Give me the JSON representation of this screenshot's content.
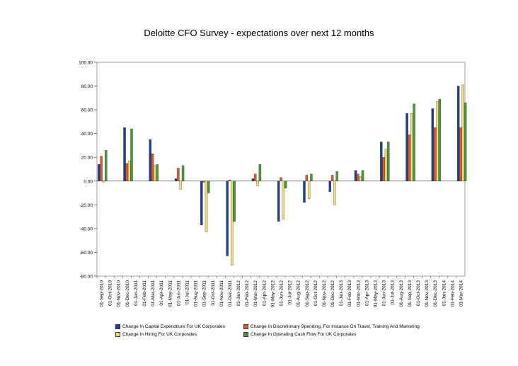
{
  "chart_data": {
    "type": "bar",
    "title": "Deloitte CFO Survey - expectations over next 12 months",
    "categories": [
      "01-Sep-2010",
      "01-Oct-2010",
      "01-Nov-2010",
      "01-Dec-2010",
      "01-Jan-2011",
      "01-Feb-2011",
      "01-Mar-2011",
      "01-Apr-2011",
      "01-May-2011",
      "01-Jun-2011",
      "01-Jul-2011",
      "01-Aug-2011",
      "01-Sep-2011",
      "01-Oct-2011",
      "01-Nov-2011",
      "01-Dec-2011",
      "01-Jan-2012",
      "01-Feb-2012",
      "01-Mar-2012",
      "01-Apr-2012",
      "01-May-2012",
      "01-Jun-2012",
      "01-Jul-2012",
      "01-Aug-2012",
      "01-Sep-2012",
      "01-Oct-2012",
      "01-Nov-2012",
      "01-Dec-2012",
      "01-Jan-2013",
      "01-Feb-2013",
      "01-Mar-2013",
      "01-Apr-2013",
      "01-May-2013",
      "01-Jun-2013",
      "01-Jul-2013",
      "01-Aug-2013",
      "01-Sep-2013",
      "01-Oct-2013",
      "01-Nov-2013",
      "01-Dec-2013",
      "01-Jan-2014",
      "01-Feb-2014",
      "01-Mar-2014"
    ],
    "ylim": [
      -80,
      100
    ],
    "yticks": [
      "100.00",
      "80.00",
      "60.00",
      "40.00",
      "20.00",
      "0.00",
      "-20.00",
      "-40.00",
      "-60.00",
      "-80.00"
    ],
    "legend_position": "bottom",
    "series": [
      {
        "name": "Change In Capital Expenditure For UK Corporates",
        "color": "#1f3f8f",
        "values": [
          14,
          null,
          null,
          45,
          null,
          null,
          35,
          null,
          null,
          2,
          null,
          null,
          -37,
          null,
          null,
          -63,
          null,
          null,
          2,
          null,
          null,
          -34,
          null,
          null,
          -18,
          null,
          null,
          -9,
          null,
          null,
          9,
          null,
          null,
          33,
          null,
          null,
          57,
          null,
          null,
          61,
          null,
          null,
          80
        ]
      },
      {
        "name": "Change In Discretionary Spending, For Instance On Travel, Training And Marketing",
        "color": "#e05a2a",
        "values": [
          21,
          null,
          null,
          15,
          null,
          null,
          23,
          null,
          null,
          11,
          null,
          null,
          -1,
          null,
          null,
          1,
          null,
          null,
          6,
          null,
          null,
          3,
          null,
          null,
          5,
          null,
          null,
          5,
          null,
          null,
          6,
          null,
          null,
          20,
          null,
          null,
          39,
          null,
          null,
          45,
          null,
          null,
          45
        ]
      },
      {
        "name": "Change In Hiring For UK Corporates",
        "color": "#f4dc7a",
        "values": [
          -1,
          null,
          null,
          17,
          null,
          null,
          13,
          null,
          null,
          -7,
          null,
          null,
          -43,
          null,
          null,
          -71,
          null,
          null,
          -4,
          null,
          null,
          -32,
          null,
          null,
          -15,
          null,
          null,
          -20,
          null,
          null,
          4,
          null,
          null,
          27,
          null,
          null,
          57,
          null,
          null,
          67,
          null,
          null,
          81
        ]
      },
      {
        "name": "Change In Operating Cash Flow For UK Corporates",
        "color": "#4a9a3a",
        "values": [
          26,
          null,
          null,
          44,
          null,
          null,
          14,
          null,
          null,
          13,
          null,
          null,
          -10,
          null,
          null,
          -34,
          null,
          null,
          14,
          null,
          null,
          -6,
          null,
          null,
          6,
          null,
          null,
          8,
          null,
          null,
          9,
          null,
          null,
          33,
          null,
          null,
          65,
          null,
          null,
          69,
          null,
          null,
          66
        ]
      }
    ]
  }
}
